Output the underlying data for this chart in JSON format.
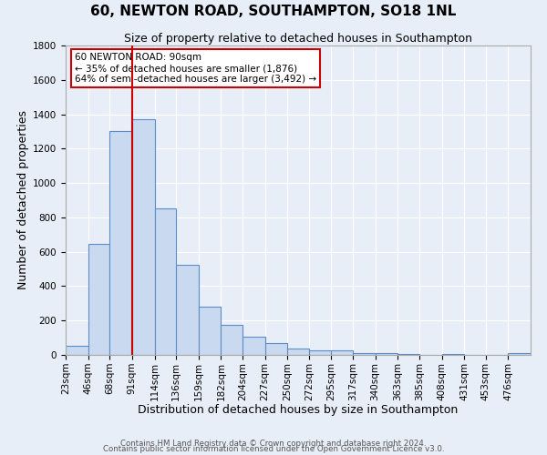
{
  "title": "60, NEWTON ROAD, SOUTHAMPTON, SO18 1NL",
  "subtitle": "Size of property relative to detached houses in Southampton",
  "xlabel": "Distribution of detached houses by size in Southampton",
  "ylabel": "Number of detached properties",
  "bar_color": "#c9d9ef",
  "bar_edge_color": "#5b8dc8",
  "bg_color": "#e8eef7",
  "grid_color": "#ffffff",
  "vline_x": 91,
  "vline_color": "#cc0000",
  "categories": [
    "23sqm",
    "46sqm",
    "68sqm",
    "91sqm",
    "114sqm",
    "136sqm",
    "159sqm",
    "182sqm",
    "204sqm",
    "227sqm",
    "250sqm",
    "272sqm",
    "295sqm",
    "317sqm",
    "340sqm",
    "363sqm",
    "385sqm",
    "408sqm",
    "431sqm",
    "453sqm",
    "476sqm"
  ],
  "bin_edges": [
    23,
    46,
    68,
    91,
    114,
    136,
    159,
    182,
    204,
    227,
    250,
    272,
    295,
    317,
    340,
    363,
    385,
    408,
    431,
    453,
    476,
    499
  ],
  "values": [
    55,
    645,
    1305,
    1370,
    850,
    525,
    280,
    175,
    105,
    70,
    35,
    25,
    25,
    10,
    10,
    5,
    0,
    5,
    0,
    0,
    10
  ],
  "ylim": [
    0,
    1800
  ],
  "yticks": [
    0,
    200,
    400,
    600,
    800,
    1000,
    1200,
    1400,
    1600,
    1800
  ],
  "annotation_box_text": "60 NEWTON ROAD: 90sqm\n← 35% of detached houses are smaller (1,876)\n64% of semi-detached houses are larger (3,492) →",
  "footer_line1": "Contains HM Land Registry data © Crown copyright and database right 2024.",
  "footer_line2": "Contains public sector information licensed under the Open Government Licence v3.0.",
  "title_fontsize": 11,
  "subtitle_fontsize": 9,
  "xlabel_fontsize": 9,
  "ylabel_fontsize": 9,
  "tick_fontsize": 7.5
}
